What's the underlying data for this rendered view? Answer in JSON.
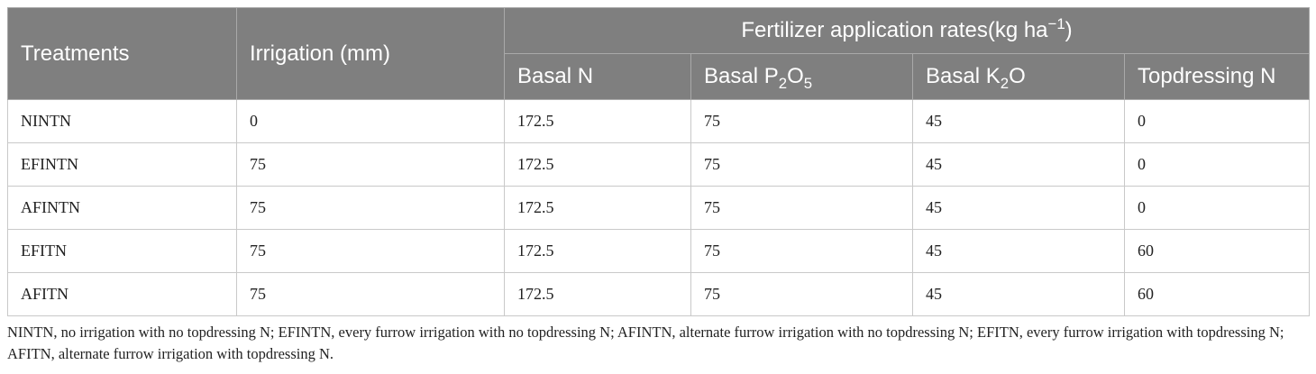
{
  "header": {
    "treatments": "Treatments",
    "irrigation": "Irrigation (mm)",
    "group_title": "Fertilizer application rates(kg ha",
    "group_unit_exp": "−1",
    "group_close": ")",
    "basal_n": "Basal N",
    "basal_p_pre": "Basal P",
    "basal_p_sub1": "2",
    "basal_p_mid": "O",
    "basal_p_sub2": "5",
    "basal_k_pre": "Basal K",
    "basal_k_sub": "2",
    "basal_k_post": "O",
    "topdressing_n": "Topdressing N"
  },
  "rows": [
    {
      "treatment": "NINTN",
      "irrigation": "0",
      "basal_n": "172.5",
      "basal_p": "75",
      "basal_k": "45",
      "topdressing_n": "0"
    },
    {
      "treatment": "EFINTN",
      "irrigation": "75",
      "basal_n": "172.5",
      "basal_p": "75",
      "basal_k": "45",
      "topdressing_n": "0"
    },
    {
      "treatment": "AFINTN",
      "irrigation": "75",
      "basal_n": "172.5",
      "basal_p": "75",
      "basal_k": "45",
      "topdressing_n": "0"
    },
    {
      "treatment": "EFITN",
      "irrigation": "75",
      "basal_n": "172.5",
      "basal_p": "75",
      "basal_k": "45",
      "topdressing_n": "60"
    },
    {
      "treatment": "AFITN",
      "irrigation": "75",
      "basal_n": "172.5",
      "basal_p": "75",
      "basal_k": "45",
      "topdressing_n": "60"
    }
  ],
  "footnote": "NINTN, no irrigation with no topdressing N; EFINTN, every furrow irrigation with no topdressing N; AFINTN, alternate furrow irrigation with no topdressing N; EFITN, every furrow irrigation with topdressing N; AFITN, alternate furrow irrigation with topdressing N."
}
